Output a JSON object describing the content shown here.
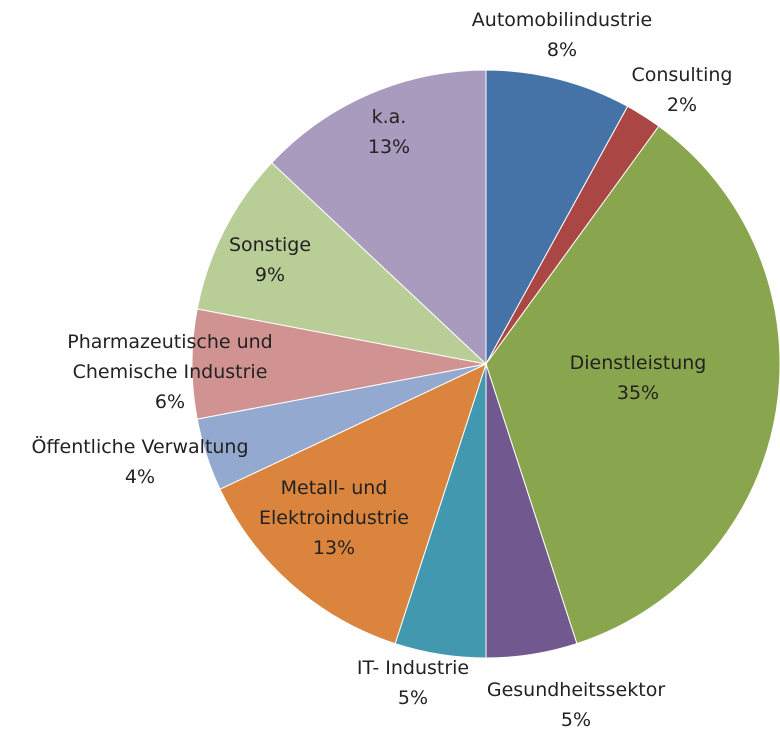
{
  "chart_data": {
    "type": "pie",
    "categories": [
      "Automobilindustrie",
      "Consulting",
      "Dienstleistung",
      "Gesundheitssektor",
      "IT- Industrie",
      "Metall- und Elektroindustrie",
      "Öffentliche Verwaltung",
      "Pharmazeutische und Chemische Industrie",
      "Sonstige",
      "k.a."
    ],
    "values": [
      8,
      2,
      35,
      5,
      5,
      13,
      4,
      6,
      9,
      13
    ],
    "value_labels": [
      "8%",
      "2%",
      "35%",
      "5%",
      "5%",
      "13%",
      "4%",
      "6%",
      "9%",
      "13%"
    ],
    "colors": [
      "#4572a7",
      "#aa4643",
      "#89a54e",
      "#71588f",
      "#4198af",
      "#db843d",
      "#93a9cf",
      "#d19392",
      "#b9cd96",
      "#a99bbd"
    ]
  }
}
